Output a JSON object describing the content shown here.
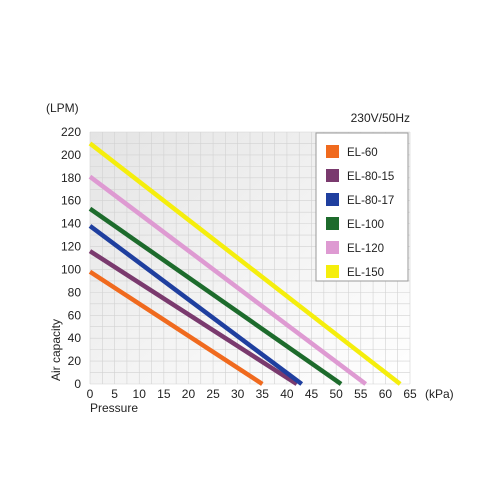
{
  "chart_data": {
    "type": "line",
    "title": "",
    "note": "230V/50Hz",
    "xlabel": "Pressure",
    "ylabel": "Air capacity",
    "x_unit": "(kPa)",
    "y_unit": "(LPM)",
    "xlim": [
      0,
      65
    ],
    "ylim": [
      0,
      220
    ],
    "x_ticks": [
      "0",
      "5",
      "10",
      "15",
      "20",
      "25",
      "30",
      "35",
      "40",
      "45",
      "50",
      "55",
      "60",
      "65"
    ],
    "y_ticks": [
      "0",
      "20",
      "40",
      "60",
      "80",
      "100",
      "120",
      "140",
      "160",
      "180",
      "200",
      "220"
    ],
    "grid": true,
    "legend_position": "top-right",
    "series": [
      {
        "name": "EL-60",
        "color": "#f06a1e",
        "x": [
          0,
          35
        ],
        "y": [
          98,
          0
        ]
      },
      {
        "name": "EL-80-15",
        "color": "#7a3a6e",
        "x": [
          0,
          42
        ],
        "y": [
          116,
          0
        ]
      },
      {
        "name": "EL-80-17",
        "color": "#1f3f9f",
        "x": [
          0,
          43
        ],
        "y": [
          138,
          0
        ]
      },
      {
        "name": "EL-100",
        "color": "#1d6b2c",
        "x": [
          0,
          51
        ],
        "y": [
          153,
          0
        ]
      },
      {
        "name": "EL-120",
        "color": "#de9ad2",
        "x": [
          0,
          56
        ],
        "y": [
          181,
          0
        ]
      },
      {
        "name": "EL-150",
        "color": "#f5ee0c",
        "x": [
          0,
          63
        ],
        "y": [
          210,
          0
        ]
      }
    ]
  }
}
